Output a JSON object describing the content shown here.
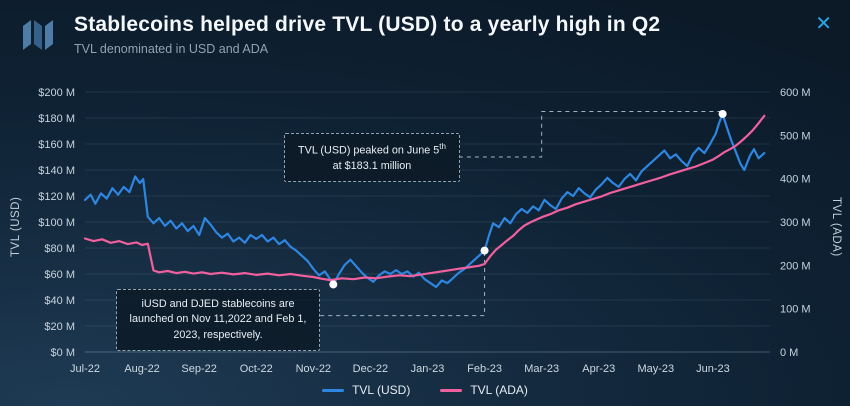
{
  "header": {
    "title": "Stablecoins helped drive TVL (USD) to a yearly high in Q2",
    "subtitle": "TVL denominated in USD and ADA",
    "close_glyph": "✕"
  },
  "axes": {
    "left_title": "TVL (USD)",
    "right_title": "TVL (ADA)",
    "left_ticks": [
      "$200 M",
      "$180 M",
      "$160 M",
      "$140 M",
      "$120 M",
      "$100 M",
      "$80 M",
      "$60 M",
      "$40 M",
      "$20 M",
      "$0 M"
    ],
    "right_ticks": [
      "600 M",
      "500 M",
      "400 M",
      "300 M",
      "200 M",
      "100 M",
      "0 M"
    ],
    "x_ticks": [
      "Jul-22",
      "Aug-22",
      "Sep-22",
      "Oct-22",
      "Nov-22",
      "Dec-22",
      "Jan-23",
      "Feb-23",
      "Mar-23",
      "Apr-23",
      "May-23",
      "Jun-23"
    ]
  },
  "legend": [
    {
      "label": "TVL (USD)",
      "color": "#2e86e0"
    },
    {
      "label": "TVL (ADA)",
      "color": "#f0609f"
    }
  ],
  "annotations": {
    "peak": {
      "pre": "TVL (USD) peaked on June 5",
      "sup": "th",
      "post": " at $183.1 million"
    },
    "launch": {
      "text": "iUSD and DJED stablecoins are launched on Nov 11,2022 and Feb 1, 2023, respectively."
    }
  },
  "chart_data": {
    "type": "line",
    "title": "Stablecoins helped drive TVL (USD) to a yearly high in Q2",
    "subtitle": "TVL denominated in USD and ADA",
    "x_unit": "months since Jul-2022",
    "x_range": [
      0,
      12
    ],
    "x_tick_labels": [
      "Jul-22",
      "Aug-22",
      "Sep-22",
      "Oct-22",
      "Nov-22",
      "Dec-22",
      "Jan-23",
      "Feb-23",
      "Mar-23",
      "Apr-23",
      "May-23",
      "Jun-23"
    ],
    "left_axis": {
      "label": "TVL (USD)",
      "unit": "$M",
      "range": [
        0,
        200
      ],
      "tick_step": 20
    },
    "right_axis": {
      "label": "TVL (ADA)",
      "unit": "M ADA",
      "range": [
        0,
        600
      ],
      "tick_step": 100
    },
    "grid": "horizontal",
    "legend_position": "bottom-center",
    "series": [
      {
        "name": "TVL (USD)",
        "axis": "left",
        "color": "#2e86e0",
        "points": [
          [
            0,
            117
          ],
          [
            0.1,
            121
          ],
          [
            0.18,
            114
          ],
          [
            0.28,
            122
          ],
          [
            0.38,
            118
          ],
          [
            0.48,
            126
          ],
          [
            0.58,
            121
          ],
          [
            0.68,
            127
          ],
          [
            0.78,
            123
          ],
          [
            0.88,
            135
          ],
          [
            0.96,
            130
          ],
          [
            1.02,
            133
          ],
          [
            1.1,
            104
          ],
          [
            1.2,
            99
          ],
          [
            1.3,
            103
          ],
          [
            1.4,
            97
          ],
          [
            1.5,
            101
          ],
          [
            1.6,
            95
          ],
          [
            1.7,
            99
          ],
          [
            1.8,
            93
          ],
          [
            1.9,
            97
          ],
          [
            2.0,
            90
          ],
          [
            2.1,
            103
          ],
          [
            2.2,
            98
          ],
          [
            2.3,
            92
          ],
          [
            2.4,
            88
          ],
          [
            2.5,
            91
          ],
          [
            2.6,
            85
          ],
          [
            2.7,
            88
          ],
          [
            2.8,
            84
          ],
          [
            2.9,
            90
          ],
          [
            3.0,
            87
          ],
          [
            3.1,
            90
          ],
          [
            3.2,
            85
          ],
          [
            3.3,
            88
          ],
          [
            3.4,
            83
          ],
          [
            3.5,
            86
          ],
          [
            3.6,
            81
          ],
          [
            3.7,
            78
          ],
          [
            3.8,
            74
          ],
          [
            3.9,
            70
          ],
          [
            4.0,
            64
          ],
          [
            4.1,
            59
          ],
          [
            4.2,
            62
          ],
          [
            4.28,
            57
          ],
          [
            4.35,
            52
          ],
          [
            4.45,
            60
          ],
          [
            4.55,
            67
          ],
          [
            4.65,
            71
          ],
          [
            4.75,
            66
          ],
          [
            4.85,
            61
          ],
          [
            4.95,
            57
          ],
          [
            5.05,
            54
          ],
          [
            5.15,
            59
          ],
          [
            5.25,
            62
          ],
          [
            5.35,
            60
          ],
          [
            5.45,
            63
          ],
          [
            5.55,
            60
          ],
          [
            5.65,
            62
          ],
          [
            5.75,
            58
          ],
          [
            5.85,
            61
          ],
          [
            5.95,
            56
          ],
          [
            6.05,
            53
          ],
          [
            6.15,
            50
          ],
          [
            6.25,
            55
          ],
          [
            6.35,
            53
          ],
          [
            6.45,
            57
          ],
          [
            6.55,
            61
          ],
          [
            6.65,
            64
          ],
          [
            6.75,
            68
          ],
          [
            6.85,
            72
          ],
          [
            6.95,
            76
          ],
          [
            7.0,
            78
          ],
          [
            7.08,
            90
          ],
          [
            7.15,
            99
          ],
          [
            7.25,
            96
          ],
          [
            7.35,
            103
          ],
          [
            7.45,
            99
          ],
          [
            7.55,
            106
          ],
          [
            7.65,
            110
          ],
          [
            7.75,
            107
          ],
          [
            7.85,
            112
          ],
          [
            7.95,
            109
          ],
          [
            8.05,
            117
          ],
          [
            8.15,
            113
          ],
          [
            8.25,
            110
          ],
          [
            8.35,
            118
          ],
          [
            8.45,
            123
          ],
          [
            8.55,
            120
          ],
          [
            8.65,
            126
          ],
          [
            8.75,
            122
          ],
          [
            8.85,
            119
          ],
          [
            8.95,
            125
          ],
          [
            9.05,
            129
          ],
          [
            9.15,
            134
          ],
          [
            9.25,
            130
          ],
          [
            9.35,
            127
          ],
          [
            9.45,
            133
          ],
          [
            9.55,
            137
          ],
          [
            9.65,
            132
          ],
          [
            9.75,
            139
          ],
          [
            9.85,
            143
          ],
          [
            9.95,
            147
          ],
          [
            10.05,
            151
          ],
          [
            10.15,
            155
          ],
          [
            10.25,
            149
          ],
          [
            10.35,
            152
          ],
          [
            10.45,
            147
          ],
          [
            10.55,
            143
          ],
          [
            10.65,
            152
          ],
          [
            10.75,
            157
          ],
          [
            10.85,
            153
          ],
          [
            10.95,
            160
          ],
          [
            11.05,
            168
          ],
          [
            11.1,
            175
          ],
          [
            11.17,
            183.1
          ],
          [
            11.25,
            172
          ],
          [
            11.32,
            163
          ],
          [
            11.4,
            154
          ],
          [
            11.48,
            145
          ],
          [
            11.55,
            140
          ],
          [
            11.65,
            151
          ],
          [
            11.72,
            156
          ],
          [
            11.8,
            149
          ],
          [
            11.9,
            153
          ]
        ]
      },
      {
        "name": "TVL (ADA)",
        "axis": "right",
        "color": "#f0609f",
        "points": [
          [
            0,
            262
          ],
          [
            0.15,
            256
          ],
          [
            0.3,
            260
          ],
          [
            0.45,
            252
          ],
          [
            0.6,
            256
          ],
          [
            0.75,
            249
          ],
          [
            0.9,
            253
          ],
          [
            1.0,
            247
          ],
          [
            1.1,
            250
          ],
          [
            1.2,
            188
          ],
          [
            1.3,
            184
          ],
          [
            1.45,
            187
          ],
          [
            1.6,
            182
          ],
          [
            1.75,
            185
          ],
          [
            1.9,
            181
          ],
          [
            2.05,
            184
          ],
          [
            2.2,
            180
          ],
          [
            2.4,
            183
          ],
          [
            2.6,
            179
          ],
          [
            2.8,
            182
          ],
          [
            3.0,
            178
          ],
          [
            3.2,
            181
          ],
          [
            3.4,
            177
          ],
          [
            3.6,
            180
          ],
          [
            3.8,
            176
          ],
          [
            4.0,
            173
          ],
          [
            4.15,
            169
          ],
          [
            4.3,
            166
          ],
          [
            4.5,
            170
          ],
          [
            4.7,
            168
          ],
          [
            4.9,
            172
          ],
          [
            5.1,
            170
          ],
          [
            5.3,
            174
          ],
          [
            5.5,
            177
          ],
          [
            5.7,
            175
          ],
          [
            5.9,
            179
          ],
          [
            6.1,
            183
          ],
          [
            6.3,
            187
          ],
          [
            6.5,
            191
          ],
          [
            6.7,
            195
          ],
          [
            6.9,
            199
          ],
          [
            7.0,
            203
          ],
          [
            7.1,
            221
          ],
          [
            7.2,
            236
          ],
          [
            7.3,
            247
          ],
          [
            7.4,
            258
          ],
          [
            7.5,
            268
          ],
          [
            7.6,
            281
          ],
          [
            7.7,
            292
          ],
          [
            7.8,
            299
          ],
          [
            7.9,
            305
          ],
          [
            8.0,
            311
          ],
          [
            8.15,
            318
          ],
          [
            8.3,
            327
          ],
          [
            8.45,
            333
          ],
          [
            8.6,
            341
          ],
          [
            8.75,
            347
          ],
          [
            8.9,
            353
          ],
          [
            9.05,
            359
          ],
          [
            9.2,
            367
          ],
          [
            9.35,
            373
          ],
          [
            9.5,
            379
          ],
          [
            9.65,
            385
          ],
          [
            9.8,
            391
          ],
          [
            9.95,
            397
          ],
          [
            10.1,
            403
          ],
          [
            10.25,
            410
          ],
          [
            10.4,
            416
          ],
          [
            10.55,
            422
          ],
          [
            10.7,
            428
          ],
          [
            10.85,
            436
          ],
          [
            11.0,
            444
          ],
          [
            11.1,
            452
          ],
          [
            11.2,
            461
          ],
          [
            11.3,
            468
          ],
          [
            11.4,
            476
          ],
          [
            11.5,
            487
          ],
          [
            11.6,
            499
          ],
          [
            11.7,
            512
          ],
          [
            11.8,
            528
          ],
          [
            11.9,
            545
          ]
        ]
      }
    ],
    "markers": [
      {
        "series": "TVL (USD)",
        "x": 11.17,
        "value_usd_m": 183.1,
        "note": "TVL (USD) peak, June 5"
      },
      {
        "series": "TVL (USD)",
        "x": 4.35,
        "value_usd_m": 52,
        "note": "iUSD launched Nov 11, 2022"
      },
      {
        "series": "TVL (USD)",
        "x": 7.0,
        "value_usd_m": 78,
        "note": "DJED launched Feb 1, 2023"
      }
    ],
    "connectors": [
      {
        "axis": "left",
        "points": [
          [
            6.55,
            150
          ],
          [
            8.0,
            150
          ],
          [
            8.0,
            185
          ],
          [
            11.17,
            185
          ]
        ]
      },
      {
        "axis": "left",
        "points": [
          [
            4.35,
            52
          ],
          [
            4.35,
            48
          ]
        ]
      },
      {
        "axis": "left",
        "points": [
          [
            4.12,
            28
          ],
          [
            7.0,
            28
          ],
          [
            7.0,
            78
          ]
        ]
      }
    ]
  }
}
